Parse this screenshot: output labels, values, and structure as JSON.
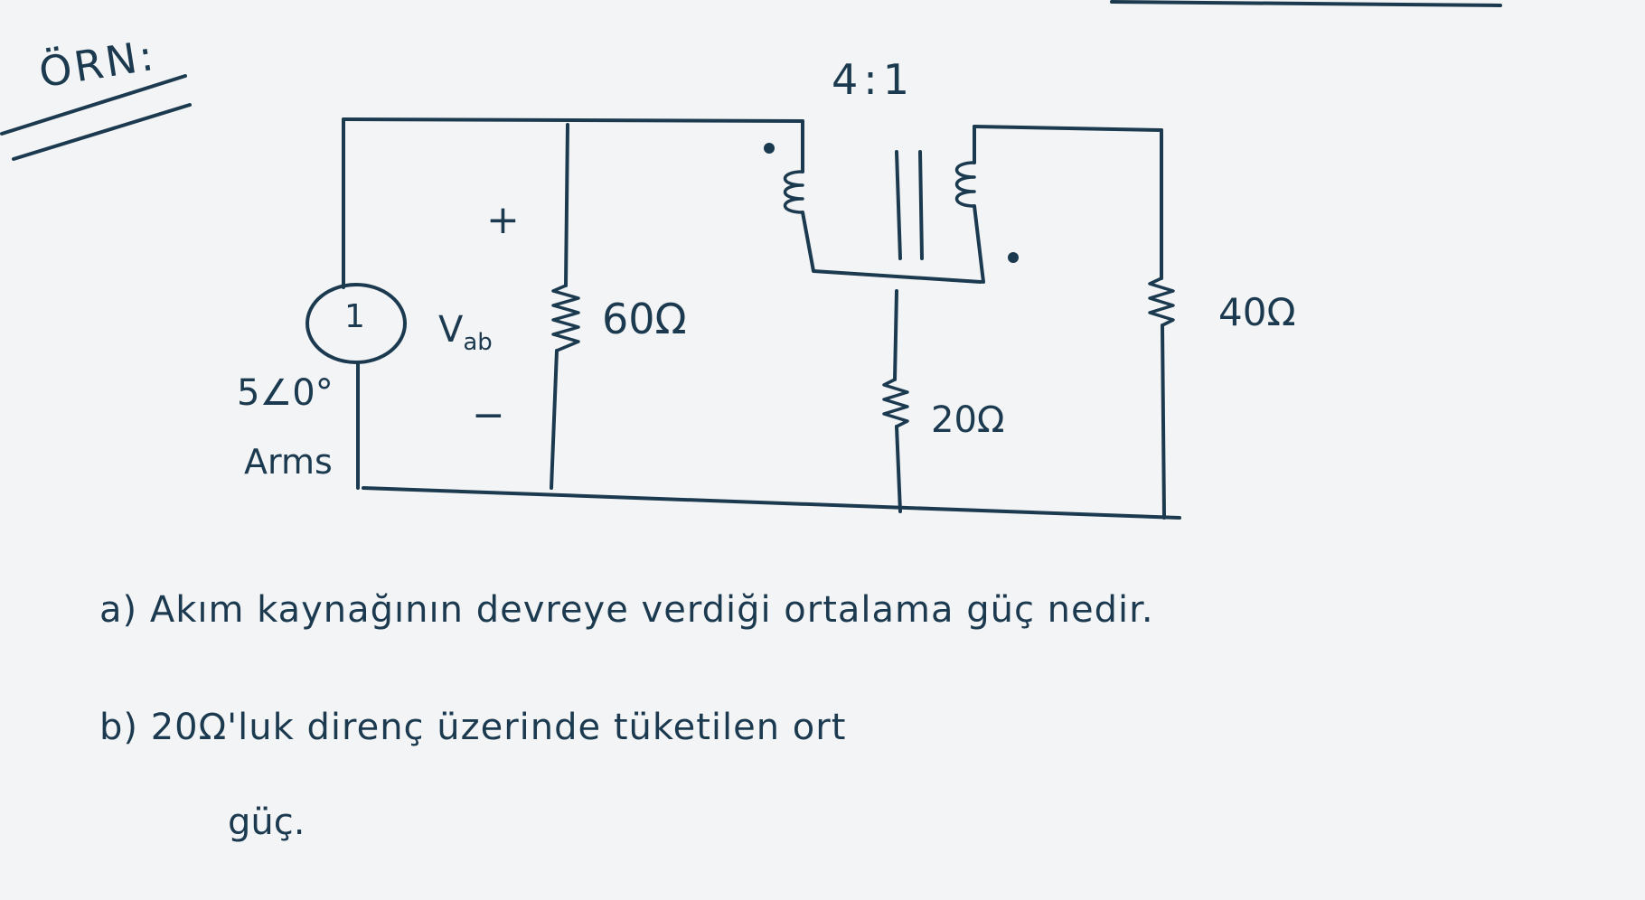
{
  "example_label": "ÖRN:",
  "transformer_ratio": "4:1",
  "source": {
    "number": "1",
    "value": "5∠0°",
    "unit": "Arms"
  },
  "voltage": {
    "name": "V",
    "subscript": "ab",
    "plus": "+",
    "minus": "−"
  },
  "resistors": {
    "r1": "60Ω",
    "r2": "20Ω",
    "r3": "40Ω"
  },
  "questions": [
    "a) Akım kaynağının devreye verdiği ortalama güç nedir.",
    "b) 20Ω'luk direnç üzerinde tüketilen ort",
    "güç."
  ]
}
